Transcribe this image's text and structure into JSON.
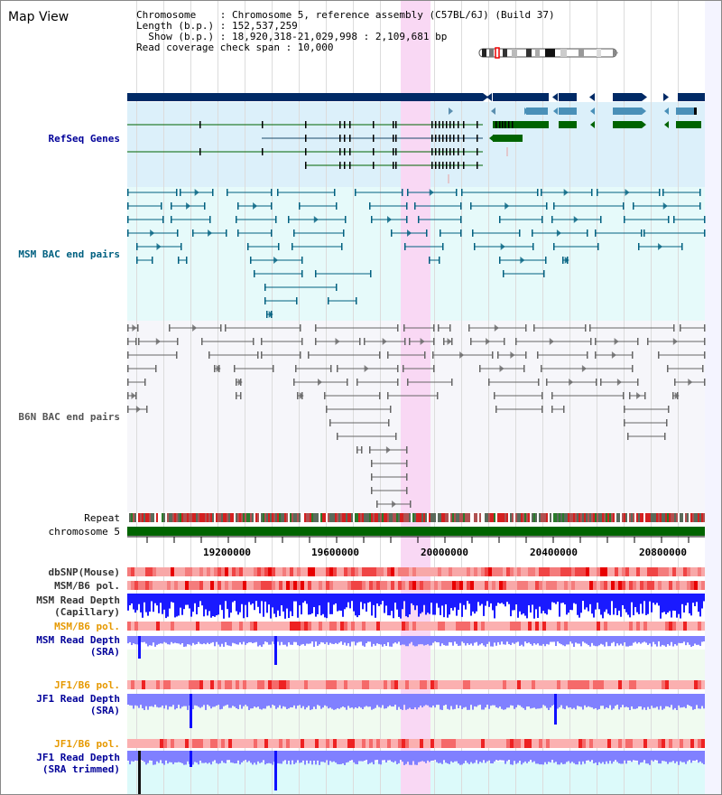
{
  "view": {
    "title": "Map View",
    "info_lines": [
      "Chromosome    : Chromosome 5, reference assembly (C57BL/6J) (Build 37)",
      "Length (b.p.) : 152,537,259",
      "  Show (b.p.) : 18,920,318-21,029,998 : 2,109,681 bp",
      "Read coverage check span : 10,000"
    ]
  },
  "colors": {
    "refseq_bg": "#dcf0fa",
    "msm_bac_bg": "#e6fafa",
    "b6n_bac_bg": "#f6f6fa",
    "highlight": "#f9d8f4",
    "gene_dark": "#002a66",
    "gene_green": "#006400",
    "msm_bac": "#006080",
    "b6n_bac": "#555555",
    "depth_blue": "#0000ff",
    "depth_light": "#8888ff",
    "label_blue": "#000099",
    "label_orange": "#e69900",
    "chrom_green": "#006400"
  },
  "tracks": {
    "refseq": "RefSeq Genes",
    "msm_bac": "MSM BAC end pairs",
    "b6n_bac": "B6N BAC end pairs",
    "repeat": "Repeat",
    "chromosome": "chromosome 5",
    "dbsnp": "dbSNP(Mouse)",
    "msm_b6_pol_1": "MSM/B6 pol.",
    "msm_depth_cap_1": "MSM Read Depth",
    "msm_depth_cap_2": "(Capillary)",
    "msm_b6_pol_2": "MSM/B6 pol.",
    "msm_depth_sra_1": "MSM Read Depth",
    "msm_depth_sra_2": "(SRA)",
    "jf1_b6_pol_1": "JF1/B6 pol.",
    "jf1_depth_sra_1": "JF1 Read Depth",
    "jf1_depth_sra_2": "(SRA)",
    "jf1_b6_pol_2": "JF1/B6 pol.",
    "jf1_depth_trim_1": "JF1 Read Depth",
    "jf1_depth_trim_2": "(SRA trimmed)"
  },
  "axis": {
    "ticks": [
      "19200000",
      "19600000",
      "20000000",
      "20400000",
      "20800000"
    ]
  }
}
